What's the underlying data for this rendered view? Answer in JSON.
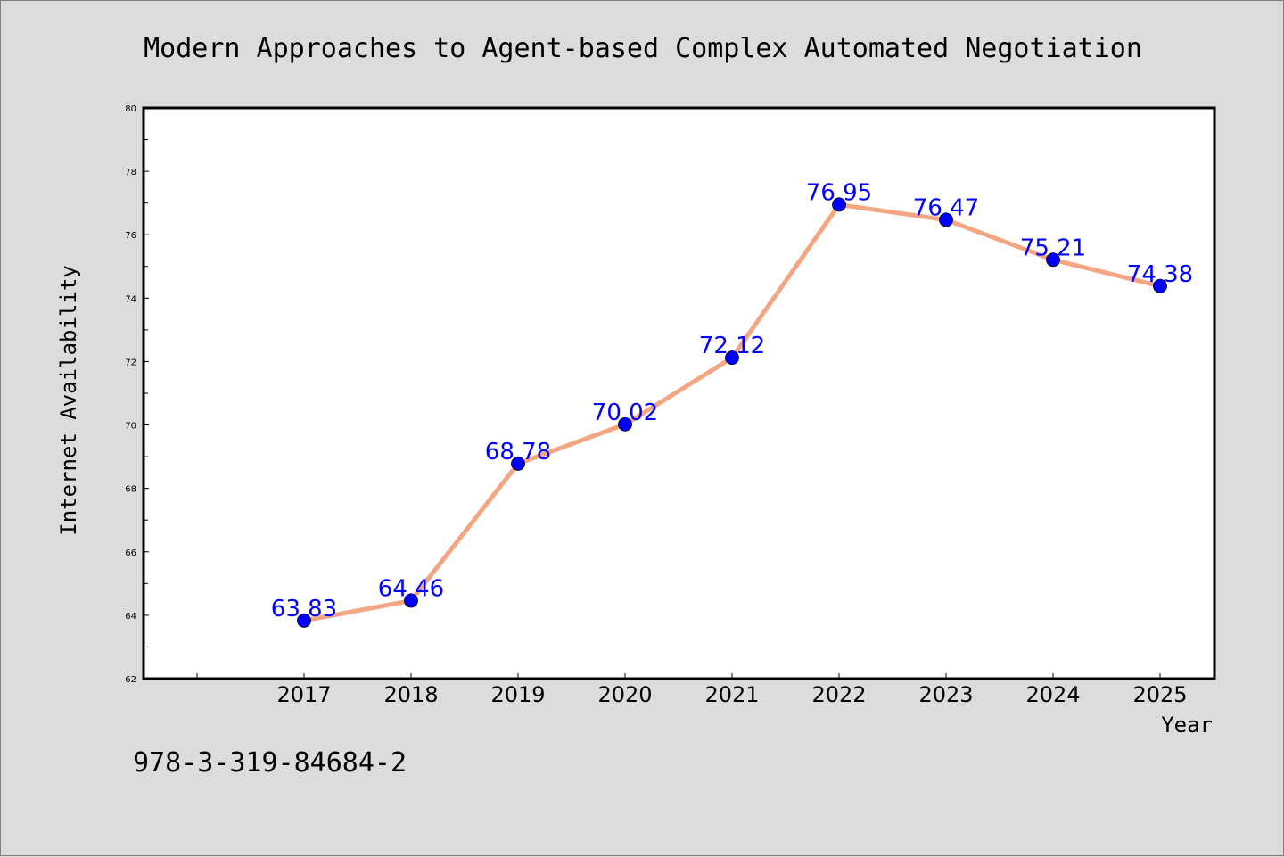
{
  "chart_data": {
    "type": "line",
    "title": "Modern Approaches to Agent-based Complex Automated Negotiation",
    "xlabel": "Year",
    "ylabel": "Internet Availability",
    "x": [
      "2017",
      "2018",
      "2019",
      "2020",
      "2021",
      "2022",
      "2023",
      "2024",
      "2025"
    ],
    "series": [
      {
        "values": [
          63.83,
          64.46,
          68.78,
          70.02,
          72.12,
          76.95,
          76.47,
          75.21,
          74.38
        ],
        "labels": [
          "63.83",
          "64.46",
          "68.78",
          "70.02",
          "72.12",
          "76.95",
          "76.47",
          "75.21",
          "74.38"
        ],
        "color": "#f4a582",
        "marker_color": "#0000ff"
      }
    ],
    "ylim": [
      62,
      80
    ],
    "yticks": [
      "62",
      "64",
      "66",
      "68",
      "70",
      "72",
      "74",
      "76",
      "78",
      "80"
    ],
    "grid": false,
    "legend": "none"
  },
  "footer": {
    "isbn": "978-3-319-84684-2"
  },
  "colors": {
    "background": "#dcdcdc",
    "plot_background": "#ffffff",
    "line": "#f4a582",
    "marker": "#0000ff",
    "data_label": "#0000ff"
  }
}
